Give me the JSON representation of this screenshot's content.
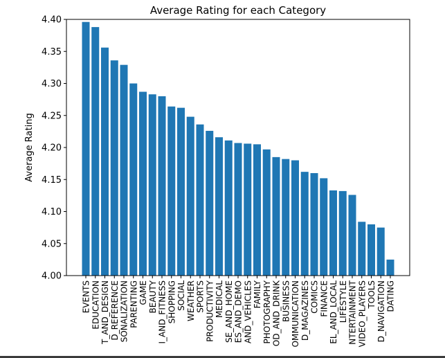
{
  "chart_data": {
    "type": "bar",
    "title": "Average Rating for each Category",
    "xlabel": "",
    "ylabel": "Average Rating",
    "ylim": [
      4.0,
      4.4
    ],
    "yticks": [
      "4.00",
      "4.05",
      "4.10",
      "4.15",
      "4.20",
      "4.25",
      "4.30",
      "4.35",
      "4.40"
    ],
    "grid": false,
    "bar_color": "#1f77b4",
    "categories": [
      "EVENTS",
      "EDUCATION",
      "T_AND_DESIGN",
      "D_REFERENCE",
      "SONALIZATION",
      "PARENTING",
      "GAME",
      "BEAUTY",
      "I_AND_FITNESS",
      "SHOPPING",
      "SOCIAL",
      "WEATHER",
      "SPORTS",
      "PRODUCTIVITY",
      "MEDICAL",
      "SE_AND_HOME",
      "ES_AND_DEMO",
      "AND_VEHICLES",
      "FAMILY",
      "PHOTOGRAPHY",
      "OD_AND_DRINK",
      "BUSINESS",
      "OMMUNICATION",
      "D_MAGAZINES",
      "COMICS",
      "FINANCE",
      "EL_AND_LOCAL",
      "LIFESTYLE",
      "NTERTAINMENT",
      "VIDEO_PLAYERS",
      "TOOLS",
      "D_NAVIGATION",
      "DATING"
    ],
    "values": [
      4.396,
      4.388,
      4.356,
      4.336,
      4.329,
      4.3,
      4.287,
      4.283,
      4.28,
      4.264,
      4.262,
      4.248,
      4.236,
      4.226,
      4.216,
      4.211,
      4.207,
      4.206,
      4.205,
      4.197,
      4.185,
      4.182,
      4.18,
      4.162,
      4.16,
      4.152,
      4.133,
      4.132,
      4.126,
      4.084,
      4.08,
      4.075,
      4.025
    ]
  }
}
